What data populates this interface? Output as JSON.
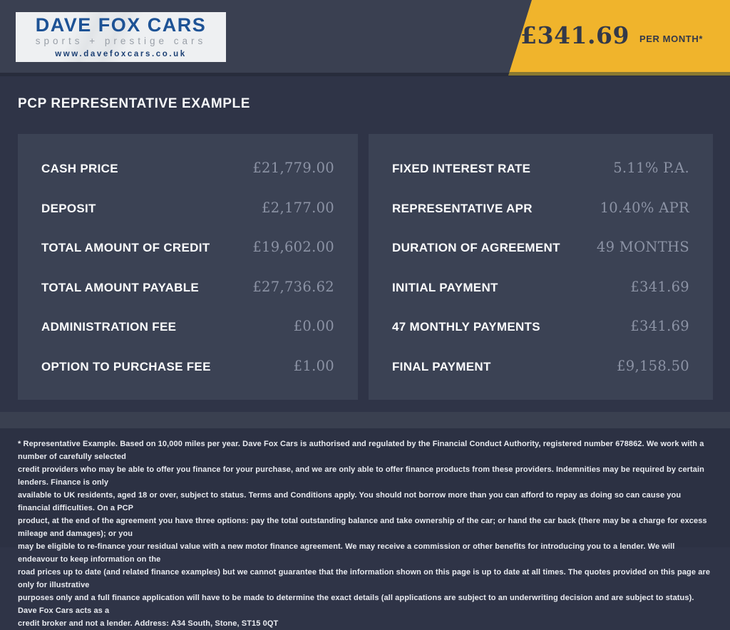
{
  "brand": {
    "name": "DAVE FOX CARS",
    "tagline": "sports + prestige cars",
    "website": "www.davefoxcars.co.uk"
  },
  "banner": {
    "price": "£341.69",
    "suffix": "PER MONTH*"
  },
  "heading": "PCP REPRESENTATIVE EXAMPLE",
  "panels": {
    "left": {
      "rows": [
        {
          "label": "CASH PRICE",
          "value": "£21,779.00"
        },
        {
          "label": "DEPOSIT",
          "value": "£2,177.00"
        },
        {
          "label": "TOTAL AMOUNT OF CREDIT",
          "value": "£19,602.00"
        },
        {
          "label": "TOTAL AMOUNT PAYABLE",
          "value": "£27,736.62"
        },
        {
          "label": "ADMINISTRATION FEE",
          "value": "£0.00"
        },
        {
          "label": "OPTION TO PURCHASE FEE",
          "value": "£1.00"
        }
      ]
    },
    "right": {
      "rows": [
        {
          "label": "FIXED INTEREST RATE",
          "value": "5.11% P.A."
        },
        {
          "label": "REPRESENTATIVE APR",
          "value": "10.40% APR"
        },
        {
          "label": "DURATION OF AGREEMENT",
          "value": "49 MONTHS"
        },
        {
          "label": "INITIAL PAYMENT",
          "value": "£341.69"
        },
        {
          "label": "47 MONTHLY PAYMENTS",
          "value": "£341.69"
        },
        {
          "label": "FINAL PAYMENT",
          "value": "£9,158.50"
        }
      ]
    }
  },
  "footer": {
    "lines": [
      "* Representative Example. Based on 10,000 miles per year. Dave Fox Cars is authorised and regulated by the Financial Conduct Authority, registered number 678862. We work with a number of carefully selected",
      "credit providers who may be able to offer you finance for your purchase, and we are only able to offer finance products from these providers. Indemnities may be required by certain lenders. Finance is only",
      "available to UK residents, aged 18 or over, subject to status. Terms and Conditions apply. You should not borrow more than you can afford to repay as doing so can cause you financial difficulties. On a PCP",
      "product, at the end of the agreement you have three options: pay the total outstanding balance and take ownership of the car; or hand the car back (there may be a charge for excess mileage and damages); or you",
      "may be eligible to re-finance your residual value with a new motor finance agreement. We may receive a commission or other benefits for introducing you to a lender. We will endeavour to keep information on the",
      "road prices up to date (and related finance examples) but we cannot guarantee that the information shown on this page is up to date at all times. The quotes provided on this page are only for illustrative",
      "purposes only and a full finance application will have to be made to determine the exact details (all applications are subject to an underwriting decision and are subject to status). Dave Fox Cars acts as a",
      "credit broker and not a lender. Address: A34 South, Stone, ST15 0QT"
    ]
  },
  "colors": {
    "accent_yellow": "#f0b42c",
    "accent_yellow_shadow": "#8a7931",
    "header_bg": "#3a4051",
    "main_bg": "#2f3447",
    "panel_bg": "#3b4254",
    "footer_bg": "#2c3143",
    "value_text": "#8c93a5",
    "label_text": "#fbfcfd",
    "logo_blue": "#1d5295"
  }
}
